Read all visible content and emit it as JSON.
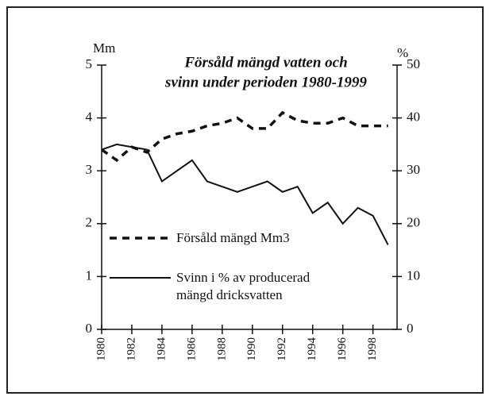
{
  "chart_data": {
    "type": "line",
    "title": [
      "Försåld mängd vatten och",
      "svinn under perioden 1980-1999"
    ],
    "y_label": "Mm",
    "y2_label": "%",
    "x": [
      1980,
      1981,
      1982,
      1983,
      1984,
      1985,
      1986,
      1987,
      1988,
      1989,
      1990,
      1991,
      1992,
      1993,
      1994,
      1995,
      1996,
      1997,
      1998,
      1999
    ],
    "xlim": [
      1980,
      1999.6
    ],
    "xticks": [
      1980,
      1982,
      1984,
      1986,
      1988,
      1990,
      1992,
      1994,
      1996,
      1998
    ],
    "ylim": [
      0,
      5
    ],
    "yticks": [
      0,
      1,
      2,
      3,
      4,
      5
    ],
    "y2lim": [
      0,
      50
    ],
    "y2ticks": [
      0,
      10,
      20,
      30,
      40,
      50
    ],
    "series": [
      {
        "name": "Försåld mängd Mm3",
        "color": "#111111",
        "dash": true,
        "values": [
          3.4,
          3.2,
          3.45,
          3.35,
          3.6,
          3.7,
          3.75,
          3.85,
          3.9,
          4.0,
          3.8,
          3.8,
          4.1,
          3.95,
          3.9,
          3.9,
          4.0,
          3.85,
          3.85,
          3.85
        ]
      },
      {
        "name": "Svinn i % av producerad mängd dricksvatten",
        "color": "#111111",
        "dash": false,
        "axis": "y2",
        "values": [
          34,
          35,
          34.5,
          34,
          28,
          30,
          32,
          28,
          27,
          26,
          27,
          28,
          26,
          27,
          22,
          24,
          20,
          23,
          21.5,
          16
        ]
      }
    ]
  }
}
